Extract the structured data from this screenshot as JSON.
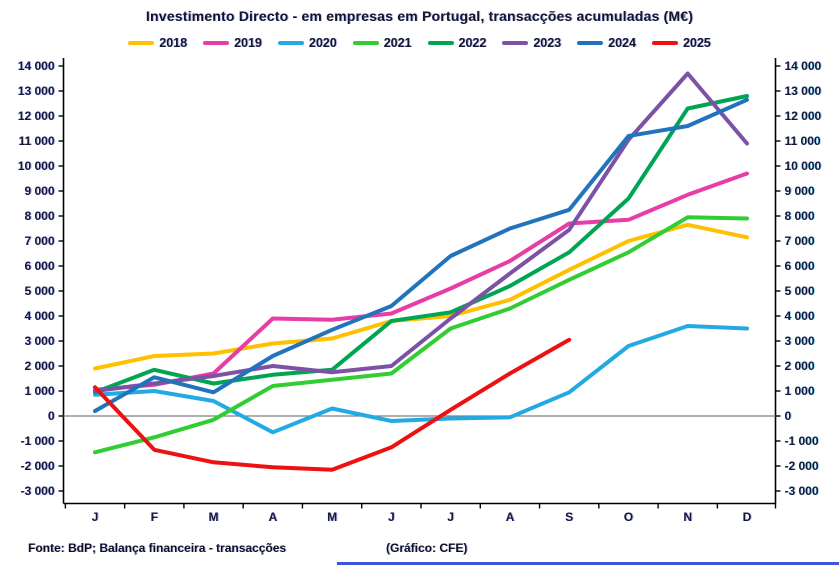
{
  "chart_data": {
    "type": "line",
    "title": "Investimento Directo - em empresas em Portugal, transacções acumuladas (M€)",
    "x_categories": [
      "J",
      "F",
      "M",
      "A",
      "M",
      "J",
      "J",
      "A",
      "S",
      "O",
      "N",
      "D"
    ],
    "series": [
      {
        "name": "2018",
        "color": "#FFC000",
        "values": [
          1900,
          2400,
          2500,
          2900,
          3100,
          3800,
          4000,
          4650,
          5850,
          7000,
          7650,
          7150
        ]
      },
      {
        "name": "2019",
        "color": "#E83CA6",
        "values": [
          1050,
          1250,
          1700,
          3900,
          3850,
          4100,
          5100,
          6200,
          7700,
          7850,
          8850,
          9700
        ]
      },
      {
        "name": "2020",
        "color": "#24AAE2",
        "values": [
          850,
          1000,
          600,
          -650,
          300,
          -200,
          -100,
          -50,
          950,
          2800,
          3600,
          3500
        ]
      },
      {
        "name": "2021",
        "color": "#32CD32",
        "values": [
          -1450,
          -850,
          -150,
          1200,
          1450,
          1700,
          3500,
          4300,
          5450,
          6550,
          7950,
          7900
        ]
      },
      {
        "name": "2022",
        "color": "#00A551",
        "values": [
          950,
          1850,
          1300,
          1650,
          1850,
          3800,
          4150,
          5200,
          6550,
          8700,
          12300,
          12800
        ]
      },
      {
        "name": "2023",
        "color": "#7B52A6",
        "values": [
          1000,
          1300,
          1600,
          2000,
          1750,
          2000,
          3900,
          5700,
          7450,
          11050,
          13700,
          10900
        ]
      },
      {
        "name": "2024",
        "color": "#2173BC",
        "values": [
          200,
          1550,
          950,
          2400,
          3450,
          4400,
          6400,
          7500,
          8250,
          11200,
          11600,
          12650
        ]
      },
      {
        "name": "2025",
        "color": "#EE1111",
        "values": [
          1150,
          -1350,
          -1850,
          -2050,
          -2150,
          -1250,
          250,
          1700,
          3050,
          null,
          null,
          null
        ]
      }
    ],
    "ylim": [
      -3000,
      14000
    ],
    "ytick_step": 1000,
    "y_tick_labels": [
      "14 000",
      "13 000",
      "12 000",
      "11 000",
      "10 000",
      "9 000",
      "8 000",
      "7 000",
      "6 000",
      "5 000",
      "4 000",
      "3 000",
      "2 000",
      "1 000",
      "0",
      "-1 000",
      "-2 000",
      "-3 000"
    ],
    "dual_y_axis": true,
    "legend_position": "top",
    "grid": false,
    "zero_line": true
  },
  "footer": {
    "source": "Fonte: BdP; Balança financeira - transacções",
    "credit": "(Gráfico: CFE)"
  }
}
